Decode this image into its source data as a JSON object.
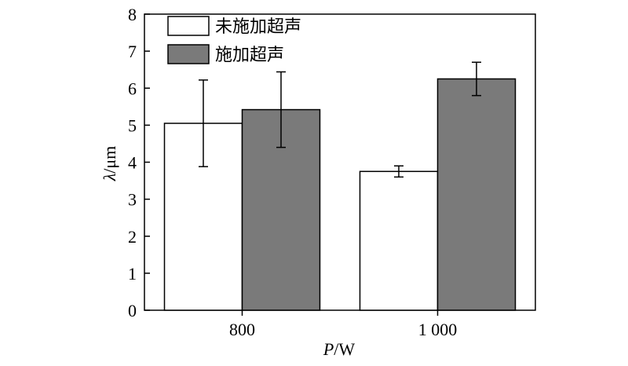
{
  "chart_data": {
    "type": "bar",
    "categories": [
      "800",
      "1 000"
    ],
    "xlabel_var": "P",
    "xlabel_unit": "/W",
    "ylabel_var": "λ",
    "ylabel_unit": "/μm",
    "ylim": [
      0,
      8
    ],
    "yticks": [
      0,
      1,
      2,
      3,
      4,
      5,
      6,
      7,
      8
    ],
    "grid": false,
    "legend_position": "top-left",
    "series": [
      {
        "name": "未施加超声",
        "color": "#ffffff",
        "values": [
          5.05,
          3.75
        ],
        "errors": [
          1.17,
          0.15
        ]
      },
      {
        "name": "施加超声",
        "color": "#7a7a7a",
        "values": [
          5.42,
          6.25
        ],
        "errors": [
          1.02,
          0.45
        ]
      }
    ]
  }
}
